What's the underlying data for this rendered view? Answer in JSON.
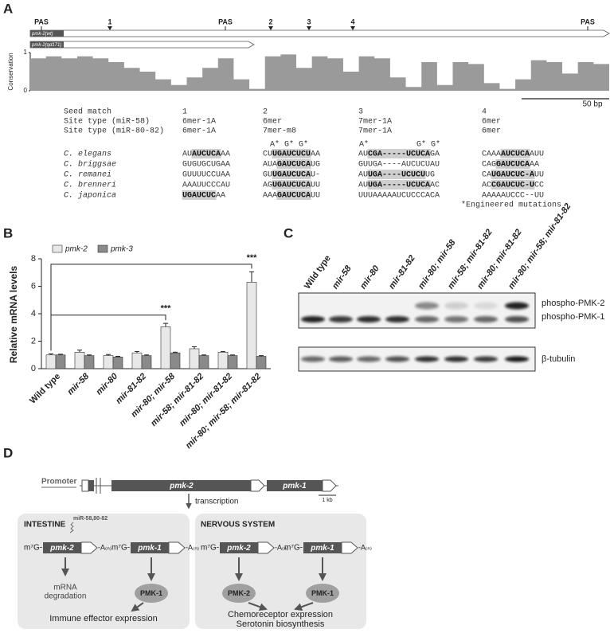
{
  "panel_labels": [
    "A",
    "B",
    "C",
    "D"
  ],
  "panel_a": {
    "gene_track": {
      "markers": [
        "PAS",
        "1",
        "PAS",
        "2",
        "3",
        "4",
        "PAS"
      ],
      "alleles": [
        "pmk-2(wt)",
        "pmk-2(qd171)"
      ]
    },
    "conservation": {
      "axis_label": "Conservation",
      "ylim": [
        0,
        1
      ],
      "yticks": [
        0,
        1
      ],
      "values": [
        0.85,
        0.9,
        0.85,
        0.9,
        0.85,
        0.75,
        0.6,
        0.5,
        0.3,
        0.15,
        0.35,
        0.6,
        0.85,
        0.3,
        0.05,
        0.9,
        0.95,
        0.6,
        0.9,
        0.85,
        0.5,
        0.9,
        0.85,
        0.35,
        0.1,
        0.75,
        0.15,
        0.75,
        0.7,
        0.2,
        0.05,
        0.3,
        0.8,
        0.75,
        0.45,
        0.75,
        0.7
      ]
    },
    "scale_bar": "50 bp",
    "alignment": {
      "row_labels": [
        "Seed match",
        "Site type (miR-58)",
        "Site type (miR-80-82)"
      ],
      "sites": [
        [
          "1",
          "6mer-1A",
          "6mer-1A"
        ],
        [
          "2",
          "6mer",
          "7mer-m8"
        ],
        [
          "3",
          "7mer-1A",
          "7mer-1A"
        ],
        [
          "4",
          "6mer",
          "6mer"
        ]
      ],
      "mutations": [
        "A* G* G*",
        "A*",
        "G* G*"
      ],
      "species": [
        {
          "name": "C. elegans",
          "sites": [
            [
              "AU",
              {
                "match": "AUCUCA"
              },
              "AA"
            ],
            [
              "CU",
              {
                "match": "UGAUCUCU"
              },
              "AA"
            ],
            [
              "AU",
              {
                "match": "CGA-----UCUCA"
              },
              "GA"
            ],
            [
              "CAAA",
              {
                "match": "AUCUCA"
              },
              "AUU"
            ]
          ]
        },
        {
          "name": "C. briggsae",
          "sites": [
            [
              "GUGUGCUGAA"
            ],
            [
              "AUA",
              {
                "match": "GAUCUCA"
              },
              "UG"
            ],
            [
              "GUUGA----AUCUCUAU"
            ],
            [
              "CAG",
              {
                "match": "GAUCUCA"
              },
              "AA"
            ]
          ]
        },
        {
          "name": "C. remanei",
          "sites": [
            [
              "GUUUUCCUAA"
            ],
            [
              "GU",
              {
                "match": "UGAUCUCA"
              },
              "U-"
            ],
            [
              "AU",
              {
                "match": "UGA----UCUCU"
              },
              "UG"
            ],
            [
              "CA",
              {
                "match": "UGAUCUC-A"
              },
              "UU"
            ]
          ]
        },
        {
          "name": "C. brenneri",
          "sites": [
            [
              "AAAUUCCCAU"
            ],
            [
              "AG",
              {
                "match": "UGAUCUCA"
              },
              "UU"
            ],
            [
              "AU",
              {
                "match": "UGA-----UCUCA"
              },
              "AC"
            ],
            [
              "AC",
              {
                "match": "CGAUCUC-U"
              },
              "CC"
            ]
          ]
        },
        {
          "name": "C. japonica",
          "sites": [
            [
              {
                "match": "UGAUCUC"
              },
              "AA"
            ],
            [
              "AAA",
              {
                "match": "GAUCUCA"
              },
              "UU"
            ],
            [
              "UUUAAAAAUCUCCCACA"
            ],
            [
              "AAAAAUCCC--UU"
            ]
          ]
        }
      ],
      "footnote": "*Engineered mutations"
    }
  },
  "chart_data": {
    "type": "bar",
    "y_label": "Relative mRNA levels",
    "categories": [
      "Wild type",
      "mir-58",
      "mir-80",
      "mir-81-82",
      "mir-80; mir-58",
      "mir-58; mir-81-82",
      "mir-80; mir-81-82",
      "mir-80; mir-58; mir-81-82"
    ],
    "series": [
      {
        "name": "pmk-2",
        "color": "#e8e8e8",
        "values": [
          1.0,
          1.2,
          0.95,
          1.15,
          3.05,
          1.45,
          1.2,
          6.3
        ],
        "errors": [
          0.08,
          0.15,
          0.08,
          0.1,
          0.25,
          0.15,
          0.05,
          0.75
        ]
      },
      {
        "name": "pmk-3",
        "color": "#8a8a8a",
        "values": [
          1.0,
          0.95,
          0.85,
          0.95,
          1.15,
          0.95,
          0.95,
          0.9
        ],
        "errors": [
          0.05,
          0.05,
          0.05,
          0.05,
          0.05,
          0.05,
          0.05,
          0.05
        ]
      }
    ],
    "ylim": [
      0,
      8
    ],
    "yticks": [
      0,
      2,
      4,
      6,
      8
    ],
    "annotations": [
      {
        "label": "***",
        "from": 0,
        "to": 4,
        "y": 3.9
      },
      {
        "label": "***",
        "from": 0,
        "to": 7,
        "y": 7.6
      }
    ]
  },
  "panel_c": {
    "bands": [
      "phospho-PMK-2",
      "phospho-PMK-1",
      "β-tubulin"
    ]
  },
  "panel_d": {
    "promoter": "Promoter",
    "genes": [
      "pmk-2",
      "pmk-1"
    ],
    "scale_bar": "1 kb",
    "transcription": "transcription",
    "cap": "m⁷G-",
    "tail": "-A₍ₙ₎",
    "intestine": {
      "title": "INTESTINE",
      "mirna": "miR-58,80-82",
      "degradation": [
        "mRNA",
        "degradation"
      ],
      "protein": "PMK-1",
      "outcome": "Immune effector expression"
    },
    "nervous": {
      "title": "NERVOUS SYSTEM",
      "proteins": [
        "PMK-2",
        "PMK-1"
      ],
      "outcomes": [
        "Chemoreceptor expression",
        "Serotonin biosynthesis"
      ]
    }
  }
}
